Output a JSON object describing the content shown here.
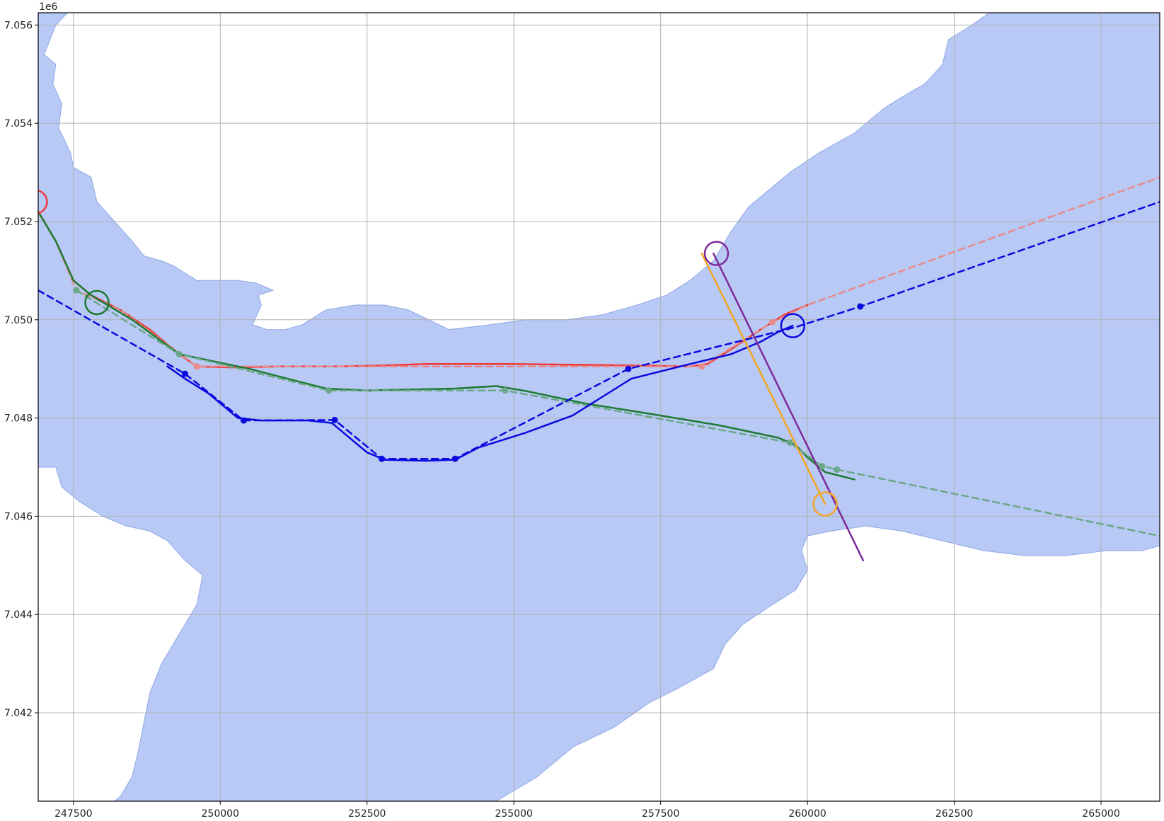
{
  "colors": {
    "water": "#b8c9f5",
    "water_edge": "#8fa6e6",
    "land": "#ffffff",
    "grid": "#b0b0b0",
    "red": "#f03a3a",
    "red_light": "#e88a8a",
    "green": "#1d7a32",
    "green_light": "#6aa888",
    "blue": "#0a0ae0",
    "orange": "#f5a623",
    "purple": "#7e2a9a"
  },
  "chart_data": {
    "type": "map",
    "title": "",
    "xlabel": "",
    "ylabel": "",
    "xlim": [
      246900,
      266000
    ],
    "ylim": [
      7040200,
      7056250
    ],
    "grid": true,
    "y_offset_label": "1e6",
    "x_ticks": [
      {
        "value": 247500,
        "label": "247500"
      },
      {
        "value": 250000,
        "label": "250000"
      },
      {
        "value": 252500,
        "label": "252500"
      },
      {
        "value": 255000,
        "label": "255000"
      },
      {
        "value": 257500,
        "label": "257500"
      },
      {
        "value": 260000,
        "label": "260000"
      },
      {
        "value": 262500,
        "label": "262500"
      },
      {
        "value": 265000,
        "label": "265000"
      }
    ],
    "y_ticks": [
      {
        "value": 7042000,
        "label": "7.042"
      },
      {
        "value": 7044000,
        "label": "7.044"
      },
      {
        "value": 7046000,
        "label": "7.046"
      },
      {
        "value": 7048000,
        "label": "7.048"
      },
      {
        "value": 7050000,
        "label": "7.050"
      },
      {
        "value": 7052000,
        "label": "7.052"
      },
      {
        "value": 7054000,
        "label": "7.054"
      },
      {
        "value": 7056000,
        "label": "7.056"
      }
    ],
    "land_polygons": [
      [
        [
          246900,
          7056250
        ],
        [
          247400,
          7056250
        ],
        [
          247200,
          7056000
        ],
        [
          247000,
          7055400
        ],
        [
          247200,
          7055200
        ],
        [
          247150,
          7054800
        ],
        [
          247300,
          7054400
        ],
        [
          247250,
          7053900
        ],
        [
          247450,
          7053400
        ],
        [
          247500,
          7053100
        ],
        [
          247800,
          7052900
        ],
        [
          247900,
          7052400
        ],
        [
          248200,
          7052000
        ],
        [
          248500,
          7051600
        ],
        [
          248700,
          7051300
        ],
        [
          249000,
          7051200
        ],
        [
          249200,
          7051100
        ],
        [
          249600,
          7050800
        ],
        [
          250000,
          7050800
        ],
        [
          250300,
          7050800
        ],
        [
          250600,
          7050750
        ],
        [
          250900,
          7050600
        ],
        [
          250650,
          7050500
        ],
        [
          250700,
          7050300
        ],
        [
          250550,
          7049900
        ],
        [
          250800,
          7049800
        ],
        [
          251100,
          7049800
        ],
        [
          251400,
          7049900
        ],
        [
          251800,
          7050200
        ],
        [
          252300,
          7050300
        ],
        [
          252800,
          7050300
        ],
        [
          253200,
          7050200
        ],
        [
          253900,
          7049800
        ],
        [
          254600,
          7049900
        ],
        [
          255200,
          7050000
        ],
        [
          255900,
          7050000
        ],
        [
          256500,
          7050100
        ],
        [
          257100,
          7050300
        ],
        [
          257600,
          7050500
        ],
        [
          258000,
          7050800
        ],
        [
          258400,
          7051200
        ],
        [
          258700,
          7051800
        ],
        [
          259000,
          7052300
        ],
        [
          259400,
          7052700
        ],
        [
          259700,
          7053000
        ],
        [
          260200,
          7053400
        ],
        [
          260800,
          7053800
        ],
        [
          261300,
          7054300
        ],
        [
          261700,
          7054600
        ],
        [
          262000,
          7054800
        ],
        [
          262300,
          7055200
        ],
        [
          262400,
          7055700
        ],
        [
          262800,
          7056000
        ],
        [
          263100,
          7056250
        ]
      ],
      [
        [
          246900,
          7047000
        ],
        [
          247200,
          7047000
        ],
        [
          247300,
          7046600
        ],
        [
          247600,
          7046300
        ],
        [
          248000,
          7046000
        ],
        [
          248400,
          7045800
        ],
        [
          248800,
          7045700
        ],
        [
          249100,
          7045500
        ],
        [
          249400,
          7045100
        ],
        [
          249700,
          7044800
        ],
        [
          249600,
          7044200
        ],
        [
          249300,
          7043600
        ],
        [
          249000,
          7043000
        ],
        [
          248800,
          7042400
        ],
        [
          248700,
          7041800
        ],
        [
          248600,
          7041200
        ],
        [
          248500,
          7040700
        ],
        [
          248300,
          7040300
        ],
        [
          248200,
          7040200
        ],
        [
          246900,
          7040200
        ]
      ],
      [
        [
          254700,
          7040200
        ],
        [
          255400,
          7040700
        ],
        [
          256000,
          7041300
        ],
        [
          256700,
          7041700
        ],
        [
          257300,
          7042200
        ],
        [
          257800,
          7042500
        ],
        [
          258400,
          7042900
        ],
        [
          258600,
          7043400
        ],
        [
          258900,
          7043800
        ],
        [
          259400,
          7044200
        ],
        [
          259800,
          7044500
        ],
        [
          260000,
          7044900
        ],
        [
          259900,
          7045300
        ],
        [
          260000,
          7045600
        ],
        [
          260400,
          7045700
        ],
        [
          261000,
          7045800
        ],
        [
          261600,
          7045700
        ],
        [
          262300,
          7045500
        ],
        [
          263000,
          7045300
        ],
        [
          263700,
          7045200
        ],
        [
          264400,
          7045200
        ],
        [
          265100,
          7045300
        ],
        [
          265700,
          7045300
        ],
        [
          266000,
          7045400
        ],
        [
          266000,
          7040200
        ]
      ]
    ],
    "series": [
      {
        "color": "#f03a3a",
        "style": "solid",
        "points": [
          [
            246900,
            7052200
          ],
          [
            247200,
            7051600
          ],
          [
            247500,
            7050800
          ],
          [
            247800,
            7050500
          ],
          [
            248300,
            7050200
          ],
          [
            248800,
            7049800
          ],
          [
            249300,
            7049300
          ],
          [
            249600,
            7049050
          ],
          [
            250200,
            7049030
          ],
          [
            251000,
            7049050
          ],
          [
            252000,
            7049050
          ],
          [
            252800,
            7049070
          ],
          [
            253500,
            7049100
          ],
          [
            255000,
            7049100
          ],
          [
            256500,
            7049080
          ],
          [
            257500,
            7049060
          ],
          [
            258000,
            7049050
          ],
          [
            258300,
            7049100
          ],
          [
            258700,
            7049400
          ],
          [
            259200,
            7049800
          ],
          [
            259600,
            7050100
          ],
          [
            260000,
            7050300
          ]
        ]
      },
      {
        "color": "#e88a8a",
        "style": "dashed",
        "points": [
          [
            246900,
            7052200
          ],
          [
            247200,
            7051600
          ],
          [
            247550,
            7050600
          ],
          [
            248300,
            7050200
          ],
          [
            249600,
            7049050
          ],
          [
            251000,
            7049050
          ],
          [
            252800,
            7049050
          ],
          [
            258200,
            7049050
          ],
          [
            259400,
            7049950
          ],
          [
            260000,
            7050300
          ],
          [
            266000,
            7052900
          ]
        ],
        "markers": [
          [
            247550,
            7050600
          ],
          [
            249600,
            7049050
          ],
          [
            258200,
            7049050
          ],
          [
            259400,
            7049950
          ]
        ]
      },
      {
        "color": "#1d7a32",
        "style": "solid",
        "points": [
          [
            246900,
            7052200
          ],
          [
            247200,
            7051600
          ],
          [
            247500,
            7050800
          ],
          [
            247800,
            7050500
          ],
          [
            248500,
            7050000
          ],
          [
            249300,
            7049300
          ],
          [
            250500,
            7049000
          ],
          [
            251800,
            7048600
          ],
          [
            252500,
            7048560
          ],
          [
            254000,
            7048600
          ],
          [
            254700,
            7048650
          ],
          [
            255200,
            7048550
          ],
          [
            256200,
            7048300
          ],
          [
            257500,
            7048050
          ],
          [
            258500,
            7047850
          ],
          [
            259500,
            7047600
          ],
          [
            259800,
            7047450
          ],
          [
            260000,
            7047200
          ],
          [
            260300,
            7046900
          ],
          [
            260800,
            7046750
          ]
        ]
      },
      {
        "color": "#6aa888",
        "style": "dashed",
        "points": [
          [
            247550,
            7050600
          ],
          [
            249300,
            7049300
          ],
          [
            251850,
            7048560
          ],
          [
            254850,
            7048560
          ],
          [
            259700,
            7047500
          ],
          [
            260250,
            7047020
          ],
          [
            260500,
            7046950
          ],
          [
            266000,
            7045600
          ]
        ],
        "markers": [
          [
            247550,
            7050600
          ],
          [
            249300,
            7049300
          ],
          [
            251850,
            7048560
          ],
          [
            254850,
            7048560
          ],
          [
            259700,
            7047500
          ],
          [
            260250,
            7047020
          ],
          [
            260500,
            7046950
          ]
        ]
      },
      {
        "color": "#0a0ae0",
        "style": "solid",
        "points": [
          [
            249100,
            7049050
          ],
          [
            249400,
            7048800
          ],
          [
            249800,
            7048500
          ],
          [
            250300,
            7048000
          ],
          [
            250700,
            7047950
          ],
          [
            251500,
            7047950
          ],
          [
            251900,
            7047900
          ],
          [
            252200,
            7047600
          ],
          [
            252500,
            7047300
          ],
          [
            252800,
            7047150
          ],
          [
            253500,
            7047130
          ],
          [
            254000,
            7047150
          ],
          [
            254400,
            7047400
          ],
          [
            255200,
            7047700
          ],
          [
            256000,
            7048050
          ],
          [
            256800,
            7048650
          ],
          [
            257000,
            7048800
          ],
          [
            257500,
            7048950
          ],
          [
            258000,
            7049100
          ],
          [
            258700,
            7049300
          ],
          [
            259200,
            7049550
          ],
          [
            259500,
            7049750
          ],
          [
            259750,
            7049880
          ]
        ]
      },
      {
        "color": "#0a0ae0",
        "style": "dashed",
        "points": [
          [
            246900,
            7050600
          ],
          [
            249400,
            7048900
          ],
          [
            250400,
            7047950
          ],
          [
            251950,
            7047960
          ],
          [
            252750,
            7047170
          ],
          [
            254000,
            7047170
          ],
          [
            256950,
            7049000
          ],
          [
            259800,
            7049850
          ],
          [
            260900,
            7050270
          ],
          [
            266000,
            7052400
          ]
        ],
        "markers": [
          [
            249400,
            7048900
          ],
          [
            250400,
            7047950
          ],
          [
            251950,
            7047960
          ],
          [
            252750,
            7047170
          ],
          [
            254000,
            7047170
          ],
          [
            256950,
            7049000
          ],
          [
            260900,
            7050270
          ]
        ]
      },
      {
        "color": "#f5a623",
        "style": "solid",
        "points": [
          [
            258200,
            7051350
          ],
          [
            260300,
            7046250
          ]
        ]
      },
      {
        "color": "#7e2a9a",
        "style": "solid",
        "points": [
          [
            258400,
            7051350
          ],
          [
            260950,
            7045100
          ]
        ]
      }
    ],
    "circles": [
      {
        "color": "#f03a3a",
        "center": [
          246850,
          7052400
        ]
      },
      {
        "color": "#1d7a32",
        "center": [
          247900,
          7050350
        ]
      },
      {
        "color": "#7e2a9a",
        "center": [
          258450,
          7051350
        ]
      },
      {
        "color": "#0a0ae0",
        "center": [
          259750,
          7049880
        ]
      },
      {
        "color": "#f5a623",
        "center": [
          260300,
          7046250
        ]
      }
    ]
  }
}
